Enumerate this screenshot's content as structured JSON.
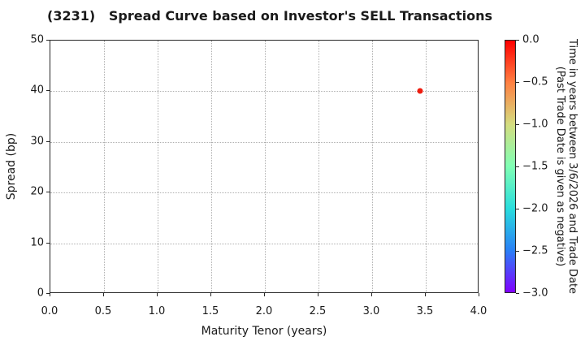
{
  "chart_data": {
    "type": "scatter",
    "title": "(3231)   Spread Curve based on Investor's SELL Transactions",
    "xlabel": "Maturity Tenor (years)",
    "ylabel": "Spread (bp)",
    "xlim": [
      0.0,
      4.0
    ],
    "ylim": [
      0,
      50
    ],
    "grid": true,
    "xticks": {
      "values": [
        0.0,
        0.5,
        1.0,
        1.5,
        2.0,
        2.5,
        3.0,
        3.5,
        4.0
      ],
      "labels": [
        "0.0",
        "0.5",
        "1.0",
        "1.5",
        "2.0",
        "2.5",
        "3.0",
        "3.5",
        "4.0"
      ]
    },
    "yticks": {
      "values": [
        0,
        10,
        20,
        30,
        40,
        50
      ],
      "labels": [
        "0",
        "10",
        "20",
        "30",
        "40",
        "50"
      ]
    },
    "points": [
      {
        "x": 3.45,
        "y": 40.0,
        "color_value": 0.0,
        "color": "#ee1c0f"
      }
    ],
    "colorbar": {
      "label_line1": "Time in years between 3/6/2026 and Trade Date",
      "label_line2": "(Past Trade Date is given as negative)",
      "vmin": -3.0,
      "vmax": 0.0,
      "colormap": "rainbow",
      "gradient_stops_top_to_bottom": [
        "#ff0000",
        "#ff8042",
        "#d4dd80",
        "#80ffb4",
        "#2adddd",
        "#2a80f6",
        "#8000ff"
      ],
      "ticks": {
        "values": [
          0.0,
          -0.5,
          -1.0,
          -1.5,
          -2.0,
          -2.5,
          -3.0
        ],
        "labels": [
          "0.0",
          "−0.5",
          "−1.0",
          "−1.5",
          "−2.0",
          "−2.5",
          "−3.0"
        ]
      }
    },
    "colors": {
      "spine": "#262626",
      "grid": "#b0b0b0",
      "text": "#1a1a1a",
      "background": "#ffffff"
    }
  }
}
